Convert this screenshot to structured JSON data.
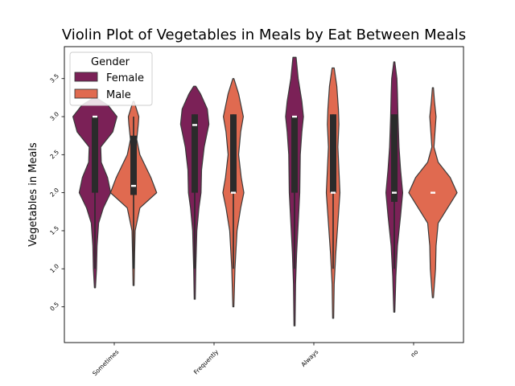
{
  "chart_data": {
    "type": "violin",
    "title": "Violin Plot of Vegetables in Meals by Eat Between Meals",
    "xlabel": "",
    "ylabel": "Vegetables in Meals",
    "ylim": [
      0.03,
      3.92
    ],
    "yticks": [
      "0.5",
      "1.0",
      "1.5",
      "2.0",
      "2.5",
      "3.0",
      "3.5"
    ],
    "categories": [
      "Sometimes",
      "Frequently",
      "Always",
      "no"
    ],
    "legend": {
      "title": "Gender",
      "position": "upper-left"
    },
    "colors": {
      "Female": "#7b2157",
      "Male": "#e06a50",
      "edge": "#3a3a3a",
      "box": "#2b2b2b",
      "median": "#ffffff"
    },
    "series": [
      {
        "name": "Female",
        "violins": [
          {
            "min": 0.75,
            "max": 3.25,
            "q1": 2.0,
            "median": 3.0,
            "q3": 3.0,
            "wlo": 1.0,
            "whi": 3.0,
            "profile": [
              [
                0.75,
                0.01
              ],
              [
                1.0,
                0.03
              ],
              [
                1.3,
                0.04
              ],
              [
                1.6,
                0.07
              ],
              [
                1.8,
                0.16
              ],
              [
                2.0,
                0.3
              ],
              [
                2.2,
                0.24
              ],
              [
                2.4,
                0.12
              ],
              [
                2.6,
                0.11
              ],
              [
                2.8,
                0.34
              ],
              [
                3.0,
                0.42
              ],
              [
                3.15,
                0.25
              ],
              [
                3.25,
                0.02
              ]
            ]
          },
          {
            "min": 0.6,
            "max": 3.4,
            "q1": 2.0,
            "median": 2.89,
            "q3": 3.03,
            "wlo": 1.0,
            "whi": 3.03,
            "profile": [
              [
                0.6,
                0.01
              ],
              [
                1.0,
                0.02
              ],
              [
                1.5,
                0.04
              ],
              [
                1.8,
                0.08
              ],
              [
                2.0,
                0.12
              ],
              [
                2.3,
                0.13
              ],
              [
                2.6,
                0.18
              ],
              [
                2.9,
                0.27
              ],
              [
                3.1,
                0.24
              ],
              [
                3.3,
                0.11
              ],
              [
                3.4,
                0.02
              ]
            ]
          },
          {
            "min": 0.25,
            "max": 3.78,
            "q1": 2.0,
            "median": 3.0,
            "q3": 3.0,
            "wlo": 1.0,
            "whi": 3.0,
            "profile": [
              [
                0.25,
                0.01
              ],
              [
                0.8,
                0.02
              ],
              [
                1.2,
                0.04
              ],
              [
                1.6,
                0.07
              ],
              [
                2.0,
                0.1
              ],
              [
                2.5,
                0.11
              ],
              [
                2.8,
                0.14
              ],
              [
                3.0,
                0.17
              ],
              [
                3.2,
                0.14
              ],
              [
                3.5,
                0.07
              ],
              [
                3.78,
                0.03
              ]
            ]
          },
          {
            "min": 0.43,
            "max": 3.72,
            "q1": 1.88,
            "median": 2.0,
            "q3": 3.03,
            "wlo": 1.0,
            "whi": 3.03,
            "profile": [
              [
                0.43,
                0.01
              ],
              [
                0.9,
                0.03
              ],
              [
                1.3,
                0.06
              ],
              [
                1.7,
                0.12
              ],
              [
                2.0,
                0.16
              ],
              [
                2.3,
                0.12
              ],
              [
                2.6,
                0.09
              ],
              [
                3.0,
                0.07
              ],
              [
                3.3,
                0.06
              ],
              [
                3.5,
                0.05
              ],
              [
                3.72,
                0.01
              ]
            ]
          }
        ]
      },
      {
        "name": "Male",
        "violins": [
          {
            "min": 0.78,
            "max": 3.2,
            "q1": 1.97,
            "median": 2.09,
            "q3": 2.75,
            "wlo": 1.0,
            "whi": 3.0,
            "profile": [
              [
                0.78,
                0.01
              ],
              [
                1.2,
                0.02
              ],
              [
                1.5,
                0.03
              ],
              [
                1.8,
                0.12
              ],
              [
                2.0,
                0.44
              ],
              [
                2.2,
                0.33
              ],
              [
                2.5,
                0.12
              ],
              [
                2.7,
                0.06
              ],
              [
                2.9,
                0.09
              ],
              [
                3.0,
                0.1
              ],
              [
                3.2,
                0.01
              ]
            ]
          },
          {
            "min": 0.5,
            "max": 3.5,
            "q1": 2.0,
            "median": 2.0,
            "q3": 3.03,
            "wlo": 1.0,
            "whi": 3.03,
            "profile": [
              [
                0.5,
                0.01
              ],
              [
                1.0,
                0.03
              ],
              [
                1.5,
                0.07
              ],
              [
                1.8,
                0.14
              ],
              [
                2.0,
                0.2
              ],
              [
                2.2,
                0.15
              ],
              [
                2.5,
                0.1
              ],
              [
                2.8,
                0.14
              ],
              [
                3.0,
                0.19
              ],
              [
                3.3,
                0.1
              ],
              [
                3.5,
                0.01
              ]
            ]
          },
          {
            "min": 0.35,
            "max": 3.64,
            "q1": 2.0,
            "median": 2.0,
            "q3": 3.03,
            "wlo": 1.0,
            "whi": 3.03,
            "profile": [
              [
                0.35,
                0.01
              ],
              [
                0.8,
                0.02
              ],
              [
                1.2,
                0.05
              ],
              [
                1.6,
                0.09
              ],
              [
                2.0,
                0.13
              ],
              [
                2.3,
                0.11
              ],
              [
                2.6,
                0.09
              ],
              [
                2.9,
                0.11
              ],
              [
                3.1,
                0.1
              ],
              [
                3.4,
                0.07
              ],
              [
                3.64,
                0.02
              ]
            ]
          },
          {
            "min": 0.62,
            "max": 3.38,
            "q1": 2.0,
            "median": 2.0,
            "q3": 2.0,
            "wlo": 2.0,
            "whi": 2.0,
            "profile": [
              [
                0.62,
                0.01
              ],
              [
                1.0,
                0.05
              ],
              [
                1.3,
                0.06
              ],
              [
                1.6,
                0.1
              ],
              [
                1.8,
                0.28
              ],
              [
                2.0,
                0.46
              ],
              [
                2.2,
                0.33
              ],
              [
                2.4,
                0.1
              ],
              [
                2.6,
                0.02
              ],
              [
                2.8,
                0.04
              ],
              [
                3.0,
                0.06
              ],
              [
                3.2,
                0.03
              ],
              [
                3.38,
                0.01
              ]
            ]
          }
        ]
      }
    ]
  }
}
